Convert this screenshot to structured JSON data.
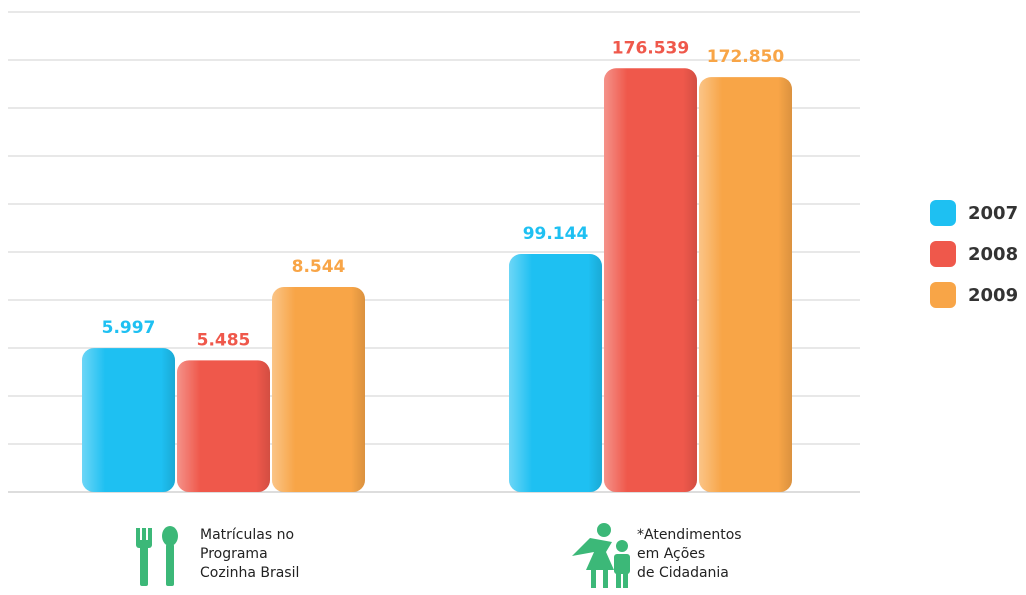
{
  "chart_data": [
    {
      "type": "bar",
      "categories": [
        "Matrículas no\nPrograma\nCozinha Brasil"
      ],
      "series": [
        {
          "name": "2007",
          "color": "#1ec0f2",
          "values": [
            5997
          ],
          "value_labels": [
            "5.997"
          ]
        },
        {
          "name": "2008",
          "color": "#ef584b",
          "values": [
            5485
          ],
          "value_labels": [
            "5.485"
          ]
        },
        {
          "name": "2009",
          "color": "#f8a547",
          "values": [
            8544
          ],
          "value_labels": [
            "8.544"
          ]
        }
      ],
      "ylim": [
        0,
        20000
      ],
      "yticks": [
        0,
        2000,
        4000,
        6000,
        8000,
        10000,
        12000,
        14000,
        16000,
        18000,
        20000
      ],
      "grid": true
    },
    {
      "type": "bar",
      "categories": [
        "*Atendimentos\nem Ações\nde Cidadania"
      ],
      "series": [
        {
          "name": "2007",
          "color": "#1ec0f2",
          "values": [
            99144
          ],
          "value_labels": [
            "99.144"
          ]
        },
        {
          "name": "2008",
          "color": "#ef584b",
          "values": [
            176539
          ],
          "value_labels": [
            "176.539"
          ]
        },
        {
          "name": "2009",
          "color": "#f8a547",
          "values": [
            172850
          ],
          "value_labels": [
            "172.850"
          ]
        }
      ],
      "ylim": [
        0,
        200000
      ]
    }
  ]
}
